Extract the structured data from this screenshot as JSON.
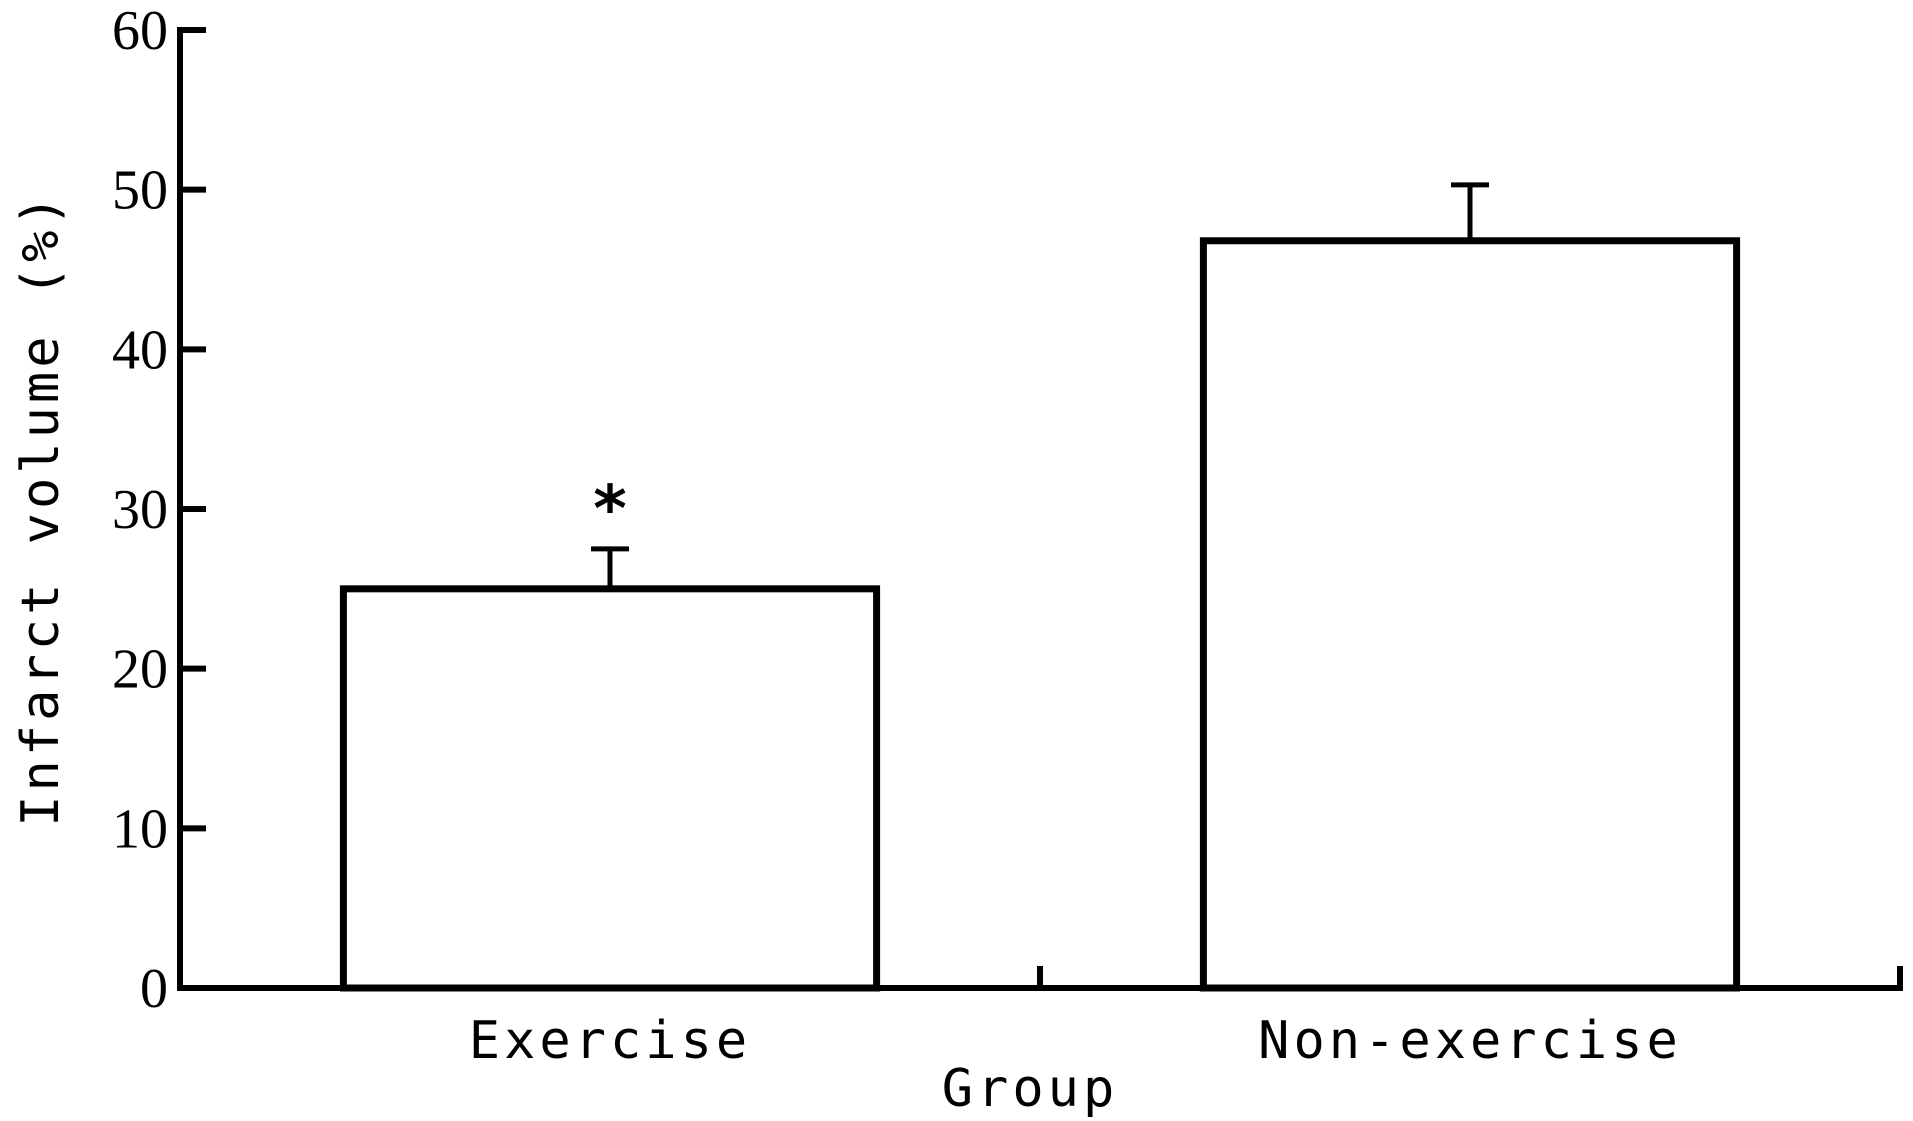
{
  "chart_data": {
    "type": "bar",
    "title": "",
    "xlabel": "Group",
    "ylabel": "Infarct volume (%)",
    "ylim": [
      0,
      60
    ],
    "yticks": [
      0,
      10,
      20,
      30,
      40,
      50,
      60
    ],
    "categories": [
      "Exercise",
      "Non-exercise"
    ],
    "values": [
      25,
      46.8
    ],
    "errors": [
      2.5,
      3.5
    ],
    "annotations": [
      "*",
      ""
    ],
    "grid": false,
    "legend": "none",
    "bar_fill": "#ffffff",
    "bar_stroke": "#000000"
  }
}
